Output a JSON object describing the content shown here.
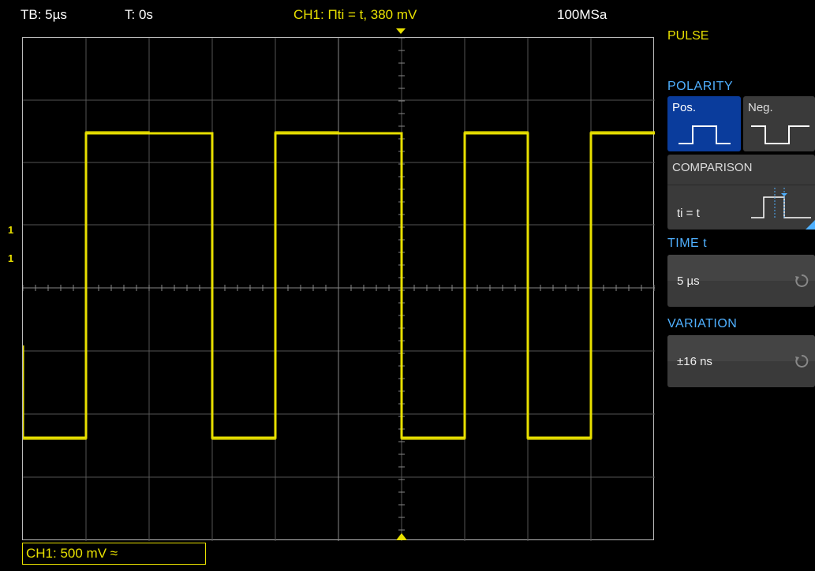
{
  "topbar": {
    "timebase": "TB: 5µs",
    "trigger_time": "T: 0s",
    "trigger_info": "CH1: Πti = t, 380 mV",
    "sample_rate": "100MSa"
  },
  "markers": {
    "trigger_level": "1",
    "ch1_ground": "1"
  },
  "channel": {
    "label": "CH1: 500 mV ≈"
  },
  "panel": {
    "title": "PULSE",
    "polarity": {
      "header": "POLARITY",
      "pos_label": "Pos.",
      "neg_label": "Neg.",
      "selected": "Pos."
    },
    "comparison": {
      "header": "COMPARISON",
      "value": "ti = t"
    },
    "time": {
      "header": "TIME t",
      "value": "5 µs"
    },
    "variation": {
      "header": "VARIATION",
      "value": "±16 ns"
    }
  },
  "colors": {
    "trace": "#e8e000",
    "accent": "#4fb0ff",
    "selected_button": "#0a3c9c"
  }
}
